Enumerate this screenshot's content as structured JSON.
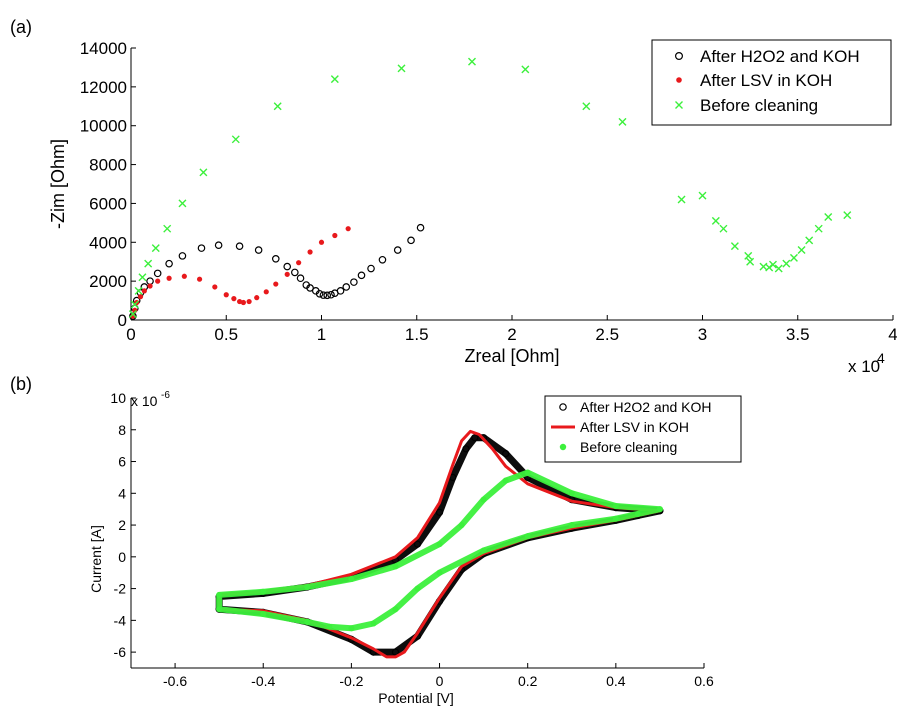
{
  "chart_data": [
    {
      "type": "scatter",
      "panel_label": "(a)",
      "xlabel": "Zreal [Ohm]",
      "ylabel": "-Zim [Ohm]",
      "x_multiplier": "x 10",
      "x_multiplier_exp": "4",
      "xlim": [
        0,
        4
      ],
      "ylim": [
        0,
        14000
      ],
      "x_ticks": [
        "0",
        "0.5",
        "1",
        "1.5",
        "2",
        "2.5",
        "3",
        "3.5",
        "4"
      ],
      "y_ticks": [
        "0",
        "2000",
        "4000",
        "6000",
        "8000",
        "10000",
        "12000",
        "14000"
      ],
      "grid": false,
      "legend_position": "top-right",
      "series": [
        {
          "name": "After H2O2 and KOH",
          "marker": "open-circle",
          "color": "#000000",
          "x": [
            0.01,
            0.02,
            0.03,
            0.05,
            0.07,
            0.1,
            0.14,
            0.2,
            0.27,
            0.37,
            0.46,
            0.57,
            0.67,
            0.76,
            0.82,
            0.86,
            0.89,
            0.92,
            0.94,
            0.97,
            0.99,
            1.01,
            1.03,
            1.05,
            1.07,
            1.1,
            1.13,
            1.17,
            1.21,
            1.26,
            1.32,
            1.4,
            1.47,
            1.52
          ],
          "y": [
            200,
            600,
            1000,
            1400,
            1700,
            2000,
            2400,
            2900,
            3300,
            3700,
            3850,
            3800,
            3600,
            3150,
            2750,
            2450,
            2150,
            1800,
            1650,
            1500,
            1350,
            1280,
            1270,
            1300,
            1380,
            1500,
            1700,
            1950,
            2300,
            2650,
            3100,
            3600,
            4100,
            4750
          ]
        },
        {
          "name": "After LSV in KOH",
          "marker": "filled-circle",
          "color": "#e8191c",
          "x": [
            0.01,
            0.02,
            0.03,
            0.05,
            0.07,
            0.1,
            0.14,
            0.2,
            0.28,
            0.36,
            0.44,
            0.5,
            0.54,
            0.57,
            0.59,
            0.62,
            0.66,
            0.71,
            0.76,
            0.82,
            0.88,
            0.94,
            1.0,
            1.07,
            1.14
          ],
          "y": [
            200,
            500,
            900,
            1200,
            1500,
            1750,
            2000,
            2150,
            2250,
            2100,
            1700,
            1300,
            1100,
            950,
            900,
            950,
            1150,
            1450,
            1850,
            2350,
            2950,
            3500,
            4000,
            4350,
            4700
          ]
        },
        {
          "name": "Before cleaning",
          "marker": "x",
          "color": "#3cf03c",
          "x": [
            0.01,
            0.02,
            0.04,
            0.06,
            0.09,
            0.13,
            0.19,
            0.27,
            0.38,
            0.55,
            0.77,
            1.07,
            1.42,
            1.79,
            2.07,
            2.39,
            2.58,
            2.89,
            3.0,
            3.07,
            3.11,
            3.17,
            3.24,
            3.25,
            3.32,
            3.35,
            3.37,
            3.4,
            3.44,
            3.48,
            3.52,
            3.56,
            3.61,
            3.66,
            3.76
          ],
          "y": [
            300,
            800,
            1500,
            2200,
            2900,
            3700,
            4700,
            6000,
            7600,
            9300,
            11000,
            12400,
            12950,
            13300,
            12900,
            11000,
            10200,
            6200,
            6400,
            5100,
            4700,
            3800,
            3300,
            3000,
            2750,
            2700,
            2850,
            2650,
            2900,
            3200,
            3600,
            4100,
            4700,
            5300,
            5400
          ]
        }
      ]
    },
    {
      "type": "line",
      "panel_label": "(b)",
      "xlabel": "Potential [V]",
      "ylabel": "Current [A]",
      "y_multiplier": "x 10",
      "y_multiplier_exp": "-6",
      "xlim": [
        -0.7,
        0.6
      ],
      "ylim": [
        -7,
        10
      ],
      "x_ticks": [
        "-0.6",
        "-0.4",
        "-0.2",
        "0",
        "0.2",
        "0.4",
        "0.6"
      ],
      "y_ticks": [
        "-6",
        "-4",
        "-2",
        "0",
        "2",
        "4",
        "6",
        "8",
        "10"
      ],
      "grid": false,
      "legend_position": "top-right",
      "series": [
        {
          "name": "After H2O2 and KOH",
          "marker": "open-circle",
          "color": "#000000",
          "x": [
            -0.5,
            -0.4,
            -0.3,
            -0.2,
            -0.1,
            -0.05,
            0.0,
            0.03,
            0.06,
            0.08,
            0.1,
            0.15,
            0.2,
            0.3,
            0.4,
            0.5,
            0.45,
            0.4,
            0.3,
            0.2,
            0.1,
            0.05,
            0.0,
            -0.05,
            -0.1,
            -0.15,
            -0.2,
            -0.3,
            -0.4,
            -0.5
          ],
          "y": [
            -2.5,
            -2.3,
            -1.9,
            -1.3,
            -0.2,
            0.8,
            2.8,
            5.0,
            6.8,
            7.5,
            7.5,
            6.5,
            5.0,
            3.6,
            3.1,
            2.9,
            2.6,
            2.3,
            1.8,
            1.2,
            0.2,
            -0.8,
            -2.8,
            -5.0,
            -6.0,
            -6.0,
            -5.2,
            -4.1,
            -3.5,
            -3.3
          ]
        },
        {
          "name": "After LSV in KOH",
          "marker": "line",
          "color": "#e8191c",
          "x": [
            -0.5,
            -0.4,
            -0.3,
            -0.2,
            -0.1,
            -0.05,
            0.0,
            0.03,
            0.05,
            0.07,
            0.09,
            0.12,
            0.15,
            0.2,
            0.3,
            0.4,
            0.5,
            0.45,
            0.4,
            0.3,
            0.2,
            0.1,
            0.05,
            0.0,
            -0.05,
            -0.08,
            -0.1,
            -0.12,
            -0.15,
            -0.2,
            -0.3,
            -0.4,
            -0.5
          ],
          "y": [
            -2.4,
            -2.2,
            -1.8,
            -1.1,
            0.0,
            1.2,
            3.4,
            5.8,
            7.3,
            7.9,
            7.7,
            6.8,
            5.7,
            4.6,
            3.5,
            3.1,
            2.9,
            2.6,
            2.3,
            1.8,
            1.2,
            0.2,
            -0.6,
            -2.6,
            -4.8,
            -6.0,
            -6.3,
            -6.3,
            -5.8,
            -5.1,
            -4.0,
            -3.4,
            -3.3
          ]
        },
        {
          "name": "Before cleaning",
          "marker": "filled-circle",
          "color": "#3cf03c",
          "x": [
            -0.5,
            -0.4,
            -0.3,
            -0.2,
            -0.1,
            0.0,
            0.05,
            0.1,
            0.15,
            0.2,
            0.3,
            0.4,
            0.5,
            0.45,
            0.4,
            0.3,
            0.2,
            0.1,
            0.0,
            -0.05,
            -0.1,
            -0.15,
            -0.2,
            -0.25,
            -0.3,
            -0.4,
            -0.5
          ],
          "y": [
            -2.4,
            -2.2,
            -1.9,
            -1.4,
            -0.6,
            0.8,
            2.0,
            3.6,
            4.8,
            5.3,
            4.0,
            3.2,
            3.0,
            2.7,
            2.4,
            2.0,
            1.3,
            0.4,
            -1.0,
            -2.0,
            -3.3,
            -4.2,
            -4.5,
            -4.4,
            -4.1,
            -3.6,
            -3.3
          ]
        }
      ]
    }
  ]
}
